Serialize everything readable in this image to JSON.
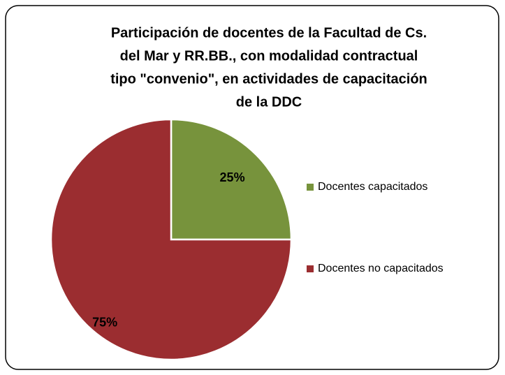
{
  "chart_data": {
    "type": "pie",
    "title": [
      "Participación de docentes de la Facultad de Cs.",
      "del Mar y RR.BB., con modalidad contractual",
      "tipo \"convenio\", en actividades de capacitación",
      "de la DDC"
    ],
    "categories": [
      "Docentes capacitados",
      "Docentes no capacitados"
    ],
    "values": [
      25,
      75
    ],
    "value_labels": [
      "25%",
      "75%"
    ],
    "colors": [
      "#77933c",
      "#9b2d30"
    ],
    "legend": "right"
  }
}
